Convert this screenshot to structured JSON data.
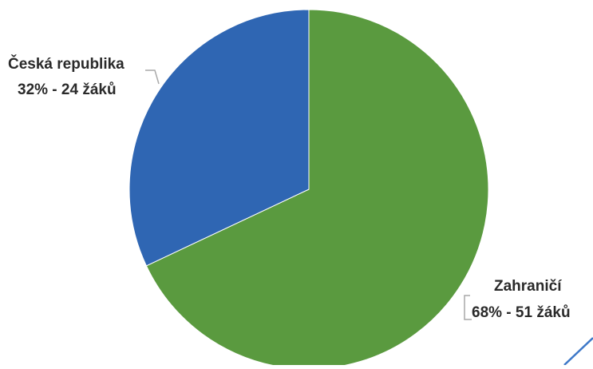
{
  "chart_data": {
    "type": "pie",
    "slices": [
      {
        "category": "Česká republika",
        "percent_label": "32%",
        "count_label": "24 žáků",
        "value": 24,
        "color": "#2f66b3"
      },
      {
        "category": "Zahraničí",
        "percent_label": "68%",
        "count_label": "51 žáků",
        "value": 51,
        "color": "#5a9a3f"
      }
    ],
    "labels": {
      "cz_line1": "Česká republika",
      "cz_line2": "32%  - 24 žáků",
      "za_line1": "Zahraničí",
      "za_line2": "68% - 51 žáků"
    },
    "start_angle_deg": 0,
    "direction": "clockwise"
  }
}
